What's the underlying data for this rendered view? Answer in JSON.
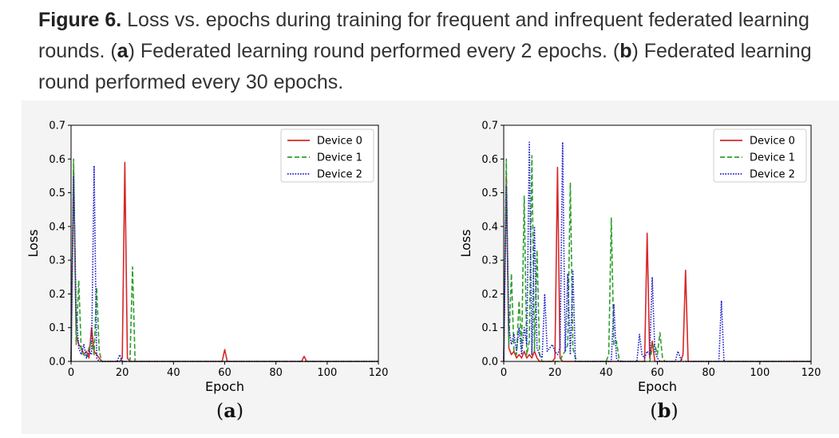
{
  "caption": {
    "figure_label": "Figure 6.",
    "text1": " Loss vs. epochs during training for frequent and infrequent federated learning rounds. (",
    "a_letter": "a",
    "text2": ") Federated learning round performed every 2 epochs. (",
    "b_letter": "b",
    "text3": ") Federated learning round performed every 30 epochs."
  },
  "colors": {
    "device0": "#d62728",
    "device1": "#2ca02c",
    "device2": "#1f1fcc"
  },
  "chart_data": [
    {
      "type": "line",
      "sublabel_open": "(",
      "sublabel_letter": "a",
      "sublabel_close": ")",
      "title": "",
      "xlabel": "Epoch",
      "ylabel": "Loss",
      "xlim": [
        0,
        120
      ],
      "ylim": [
        0,
        0.7
      ],
      "xticks": [
        0,
        20,
        40,
        60,
        80,
        100,
        120
      ],
      "yticks": [
        0.0,
        0.1,
        0.2,
        0.3,
        0.4,
        0.5,
        0.6,
        0.7
      ],
      "legend_position": "top-right",
      "grid": false,
      "series": [
        {
          "name": "Device 0",
          "style": "solid",
          "x": [
            0,
            1,
            2,
            3,
            4,
            5,
            6,
            7,
            8,
            9,
            10,
            11,
            12,
            18,
            19,
            20,
            21,
            22,
            23,
            58,
            59,
            60,
            61,
            62,
            89,
            90,
            91,
            92,
            93,
            120
          ],
          "y": [
            0.0,
            0.57,
            0.08,
            0.05,
            0.04,
            0.02,
            0.03,
            0.01,
            0.1,
            0.03,
            0.02,
            0.01,
            0.0,
            0.0,
            0.0,
            0.01,
            0.59,
            0.01,
            0.0,
            0.0,
            0.0,
            0.035,
            0.0,
            0.0,
            0.0,
            0.0,
            0.015,
            0.0,
            0.0,
            0.0
          ]
        },
        {
          "name": "Device 1",
          "style": "dashed",
          "x": [
            0,
            1,
            2,
            3,
            4,
            5,
            6,
            7,
            8,
            9,
            10,
            11,
            12,
            13,
            22,
            23,
            24,
            25,
            26,
            27,
            120
          ],
          "y": [
            0.0,
            0.6,
            0.05,
            0.24,
            0.03,
            0.02,
            0.01,
            0.04,
            0.06,
            0.02,
            0.22,
            0.03,
            0.0,
            0.0,
            0.0,
            0.0,
            0.28,
            0.0,
            0.0,
            0.0,
            0.0
          ]
        },
        {
          "name": "Device 2",
          "style": "dotted",
          "x": [
            0,
            1,
            2,
            3,
            4,
            5,
            6,
            7,
            8,
            9,
            10,
            11,
            12,
            18,
            19,
            20,
            21,
            120
          ],
          "y": [
            0.0,
            0.55,
            0.15,
            0.04,
            0.02,
            0.05,
            0.01,
            0.03,
            0.02,
            0.58,
            0.01,
            0.0,
            0.0,
            0.0,
            0.02,
            0.0,
            0.0,
            0.0
          ]
        }
      ]
    },
    {
      "type": "line",
      "sublabel_open": "(",
      "sublabel_letter": "b",
      "sublabel_close": ")",
      "title": "",
      "xlabel": "Epoch",
      "ylabel": "Loss",
      "xlim": [
        0,
        120
      ],
      "ylim": [
        0,
        0.7
      ],
      "xticks": [
        0,
        20,
        40,
        60,
        80,
        100,
        120
      ],
      "yticks": [
        0.0,
        0.1,
        0.2,
        0.3,
        0.4,
        0.5,
        0.6,
        0.7
      ],
      "legend_position": "top-right",
      "grid": false,
      "series": [
        {
          "name": "Device 0",
          "style": "solid",
          "x": [
            0,
            1,
            2,
            3,
            4,
            5,
            6,
            7,
            8,
            9,
            10,
            11,
            12,
            13,
            14,
            19,
            20,
            21,
            22,
            23,
            55,
            56,
            57,
            58,
            59,
            60,
            69,
            70,
            71,
            72,
            73,
            120
          ],
          "y": [
            0.0,
            0.55,
            0.04,
            0.02,
            0.03,
            0.01,
            0.02,
            0.01,
            0.03,
            0.01,
            0.02,
            0.01,
            0.03,
            0.01,
            0.0,
            0.0,
            0.01,
            0.575,
            0.01,
            0.0,
            0.0,
            0.38,
            0.01,
            0.06,
            0.0,
            0.0,
            0.0,
            0.02,
            0.27,
            0.0,
            0.0,
            0.0
          ]
        },
        {
          "name": "Device 1",
          "style": "dashed",
          "x": [
            0,
            1,
            2,
            3,
            4,
            5,
            6,
            7,
            8,
            9,
            10,
            11,
            12,
            13,
            14,
            15,
            22,
            23,
            24,
            25,
            26,
            27,
            28,
            29,
            40,
            41,
            42,
            43,
            44,
            45,
            46,
            57,
            58,
            59,
            60,
            61,
            62,
            63,
            120
          ],
          "y": [
            0.0,
            0.6,
            0.05,
            0.26,
            0.03,
            0.02,
            0.18,
            0.04,
            0.49,
            0.02,
            0.06,
            0.61,
            0.03,
            0.33,
            0.02,
            0.0,
            0.0,
            0.02,
            0.03,
            0.05,
            0.53,
            0.04,
            0.01,
            0.0,
            0.0,
            0.02,
            0.425,
            0.05,
            0.06,
            0.01,
            0.0,
            0.0,
            0.04,
            0.05,
            0.02,
            0.085,
            0.01,
            0.0,
            0.0
          ]
        },
        {
          "name": "Device 2",
          "style": "dotted",
          "x": [
            0,
            1,
            2,
            3,
            4,
            5,
            6,
            7,
            8,
            9,
            10,
            11,
            12,
            13,
            14,
            15,
            16,
            17,
            18,
            19,
            20,
            21,
            22,
            23,
            24,
            25,
            26,
            27,
            28,
            42,
            43,
            44,
            45,
            52,
            53,
            54,
            55,
            56,
            57,
            58,
            59,
            60,
            61,
            67,
            68,
            69,
            70,
            84,
            85,
            86,
            87,
            120
          ],
          "y": [
            0.0,
            0.52,
            0.1,
            0.05,
            0.08,
            0.03,
            0.1,
            0.02,
            0.1,
            0.05,
            0.65,
            0.02,
            0.4,
            0.04,
            0.02,
            0.01,
            0.2,
            0.03,
            0.04,
            0.05,
            0.03,
            0.02,
            0.04,
            0.65,
            0.03,
            0.26,
            0.02,
            0.27,
            0.0,
            0.0,
            0.17,
            0.01,
            0.0,
            0.0,
            0.08,
            0.02,
            0.01,
            0.03,
            0.02,
            0.25,
            0.03,
            0.01,
            0.0,
            0.0,
            0.03,
            0.01,
            0.0,
            0.0,
            0.18,
            0.0,
            0.0,
            0.0
          ]
        }
      ]
    }
  ]
}
